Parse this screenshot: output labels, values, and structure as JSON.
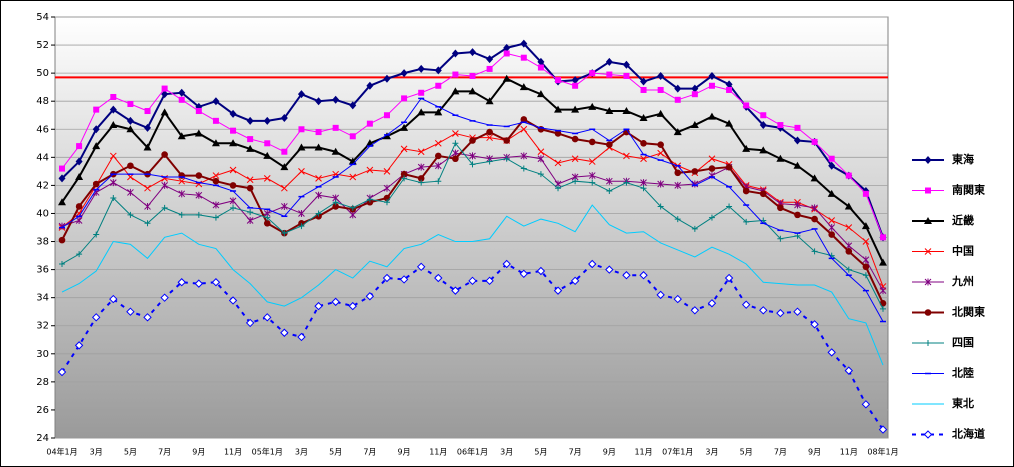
{
  "chart_data": {
    "type": "line",
    "categories": [
      "04年1月",
      null,
      "3月",
      null,
      "5月",
      null,
      "7月",
      null,
      "9月",
      null,
      "11月",
      null,
      "05年1月",
      null,
      "3月",
      null,
      "5月",
      null,
      "7月",
      null,
      "9月",
      null,
      "11月",
      null,
      "06年1月",
      null,
      "3月",
      null,
      "5月",
      null,
      "7月",
      null,
      "9月",
      null,
      "11月",
      null,
      "07年1月",
      null,
      "3月",
      null,
      "5月",
      null,
      "7月",
      null,
      "9月",
      null,
      "11月",
      null,
      "08年1月"
    ],
    "ylim": [
      24,
      54
    ],
    "yticks": [
      24,
      26,
      28,
      30,
      32,
      34,
      36,
      38,
      40,
      42,
      44,
      46,
      48,
      50,
      52,
      54
    ],
    "grid": true,
    "reference_line": {
      "value": 49.7,
      "color": "#ff0000"
    },
    "legend": "right",
    "series": [
      {
        "name": "東海",
        "color": "#000080",
        "marker": "diamond",
        "values": [
          42.5,
          43.7,
          46,
          47.4,
          46.6,
          46.1,
          48.5,
          48.6,
          47.6,
          48,
          47.1,
          46.6,
          46.6,
          46.8,
          48.5,
          48,
          48.1,
          47.7,
          49.1,
          49.6,
          50,
          50.3,
          50.2,
          51.4,
          51.5,
          51,
          51.8,
          52.1,
          50.8,
          49.4,
          49.5,
          50,
          50.8,
          50.6,
          49.4,
          49.8,
          48.9,
          48.9,
          49.8,
          49.2,
          47.6,
          46.3,
          46.1,
          45.2,
          45.1,
          43.4,
          42.7,
          41.6,
          38.3
        ]
      },
      {
        "name": "南関東",
        "color": "#ff00ff",
        "marker": "square",
        "values": [
          43.2,
          44.8,
          47.4,
          48.3,
          47.8,
          47.3,
          48.9,
          48.1,
          47.3,
          46.6,
          45.9,
          45.3,
          45,
          44.4,
          46,
          45.8,
          46.1,
          45.5,
          46.4,
          47,
          48.2,
          48.6,
          49.1,
          49.9,
          49.8,
          50.3,
          51.4,
          51.1,
          50.4,
          49.5,
          49.1,
          50,
          49.9,
          49.8,
          48.8,
          48.8,
          48.1,
          48.5,
          49.1,
          48.8,
          47.7,
          47,
          46.3,
          46.1,
          45.1,
          43.9,
          42.7,
          41.4,
          38.3
        ]
      },
      {
        "name": "近畿",
        "color": "#000000",
        "marker": "triangle",
        "values": [
          40.8,
          42.6,
          44.8,
          46.3,
          46,
          44.7,
          47.2,
          45.5,
          45.7,
          45,
          45,
          44.6,
          44.1,
          43.3,
          44.7,
          44.7,
          44.4,
          43.7,
          45,
          45.5,
          46.1,
          47.2,
          47.2,
          48.7,
          48.7,
          48,
          49.6,
          49,
          48.5,
          47.4,
          47.4,
          47.6,
          47.3,
          47.3,
          46.8,
          47.1,
          45.8,
          46.3,
          46.9,
          46.4,
          44.6,
          44.5,
          43.9,
          43.4,
          42.5,
          41.4,
          40.5,
          39.1,
          36.5
        ]
      },
      {
        "name": "中国",
        "color": "#ff0000",
        "marker": "x",
        "values": [
          39,
          40,
          42,
          44.1,
          42.6,
          41.8,
          42.5,
          42.3,
          42.1,
          42.7,
          43.1,
          42.4,
          42.5,
          41.8,
          43,
          42.5,
          42.8,
          42.6,
          43.1,
          43,
          44.6,
          44.4,
          45,
          45.7,
          45.4,
          45.4,
          45.2,
          46,
          44.4,
          43.6,
          43.9,
          43.7,
          44.7,
          44.1,
          43.9,
          44.3,
          43.4,
          42.9,
          43.9,
          43.5,
          42,
          41.7,
          40.8,
          40.8,
          40.3,
          39.5,
          39,
          38,
          34.8
        ]
      },
      {
        "name": "九州",
        "color": "#800080",
        "marker": "star",
        "values": [
          39.1,
          39.5,
          41.5,
          42.2,
          41.5,
          40.5,
          42,
          41.4,
          41.3,
          40.6,
          40.9,
          39.5,
          40,
          40.5,
          40,
          41.3,
          41.1,
          39.9,
          41.1,
          41.8,
          42.8,
          43.3,
          43.4,
          44.3,
          44.1,
          43.9,
          44,
          44.1,
          43.9,
          42.1,
          42.6,
          42.7,
          42.3,
          42.3,
          42.2,
          42.1,
          42,
          42.1,
          42.7,
          43.3,
          41.9,
          41.6,
          40.7,
          40.6,
          40.4,
          39,
          37.7,
          36.7,
          34.5
        ]
      },
      {
        "name": "北関東",
        "color": "#800000",
        "marker": "circle",
        "values": [
          38.1,
          40.5,
          42.1,
          42.8,
          43.4,
          42.8,
          44.2,
          42.7,
          42.7,
          42.3,
          42,
          41.8,
          39.3,
          38.6,
          39.3,
          39.8,
          40.5,
          40.3,
          40.8,
          41.1,
          42.8,
          42.5,
          44.1,
          43.9,
          45.2,
          45.8,
          45.2,
          46.7,
          46,
          45.7,
          45.3,
          45.1,
          44.9,
          45.8,
          45,
          44.9,
          42.9,
          43,
          43.2,
          43.3,
          41.6,
          41.4,
          40.4,
          39.9,
          39.6,
          38.5,
          37.3,
          36.2,
          33.6
        ]
      },
      {
        "name": "四国",
        "color": "#008080",
        "marker": "plus",
        "values": [
          36.4,
          37.1,
          38.5,
          41.1,
          39.9,
          39.3,
          40.4,
          39.9,
          39.9,
          39.7,
          40.4,
          40.1,
          39.7,
          38.6,
          39.1,
          40,
          40.8,
          40.4,
          41,
          40.8,
          42.5,
          42.2,
          42.3,
          45,
          43.5,
          43.7,
          43.9,
          43.2,
          42.8,
          41.8,
          42.3,
          42.2,
          41.6,
          42.2,
          41.8,
          40.5,
          39.6,
          38.9,
          39.7,
          40.5,
          39.4,
          39.5,
          38.2,
          38.4,
          37.3,
          37,
          36,
          35.6,
          33.2
        ]
      },
      {
        "name": "北陸",
        "color": "#0000ff",
        "marker": "dash",
        "values": [
          39,
          39.8,
          41.7,
          42.8,
          42.8,
          42.8,
          42.6,
          42.6,
          42.2,
          42,
          41.6,
          40.4,
          40.3,
          39.8,
          41.2,
          41.9,
          42.6,
          43.5,
          44.8,
          45.6,
          46.5,
          48.2,
          47.6,
          47,
          46.6,
          46.3,
          46.2,
          46.5,
          46.1,
          45.9,
          45.7,
          46,
          45.2,
          46,
          44.2,
          43.8,
          43.4,
          42,
          42.6,
          41.9,
          40.6,
          39.3,
          38.8,
          38.6,
          38.9,
          36.8,
          35.6,
          34.5,
          32.3
        ]
      },
      {
        "name": "東北",
        "color": "#00ccff",
        "marker": "none",
        "values": [
          34.4,
          35,
          35.9,
          38,
          37.8,
          36.8,
          38.3,
          38.6,
          37.8,
          37.5,
          36,
          35,
          33.7,
          33.4,
          34,
          34.9,
          36,
          35.4,
          36.6,
          36.2,
          37.5,
          37.8,
          38.5,
          38,
          38,
          38.2,
          39.8,
          39.1,
          39.6,
          39.3,
          38.7,
          40.6,
          39.2,
          38.6,
          38.7,
          37.9,
          37.4,
          36.9,
          37.6,
          37.1,
          36.4,
          35.1,
          35,
          34.9,
          34.9,
          34.4,
          32.5,
          32.2,
          29.2
        ]
      },
      {
        "name": "北海道",
        "color": "#0000ff",
        "marker": "open-diamond",
        "dashed": true,
        "values": [
          28.7,
          30.6,
          32.6,
          33.9,
          33,
          32.6,
          34,
          35.1,
          35,
          35.1,
          33.8,
          32.2,
          32.6,
          31.5,
          31.2,
          33.4,
          33.7,
          33.4,
          34.1,
          35.4,
          35.3,
          36.2,
          35.4,
          34.5,
          35.2,
          35.2,
          36.4,
          35.7,
          35.9,
          34.5,
          35.2,
          36.4,
          36,
          35.6,
          35.6,
          34.2,
          33.9,
          33.1,
          33.6,
          35.4,
          33.5,
          33.1,
          32.9,
          33,
          32.1,
          30.1,
          28.8,
          26.4,
          24.6
        ]
      }
    ]
  }
}
